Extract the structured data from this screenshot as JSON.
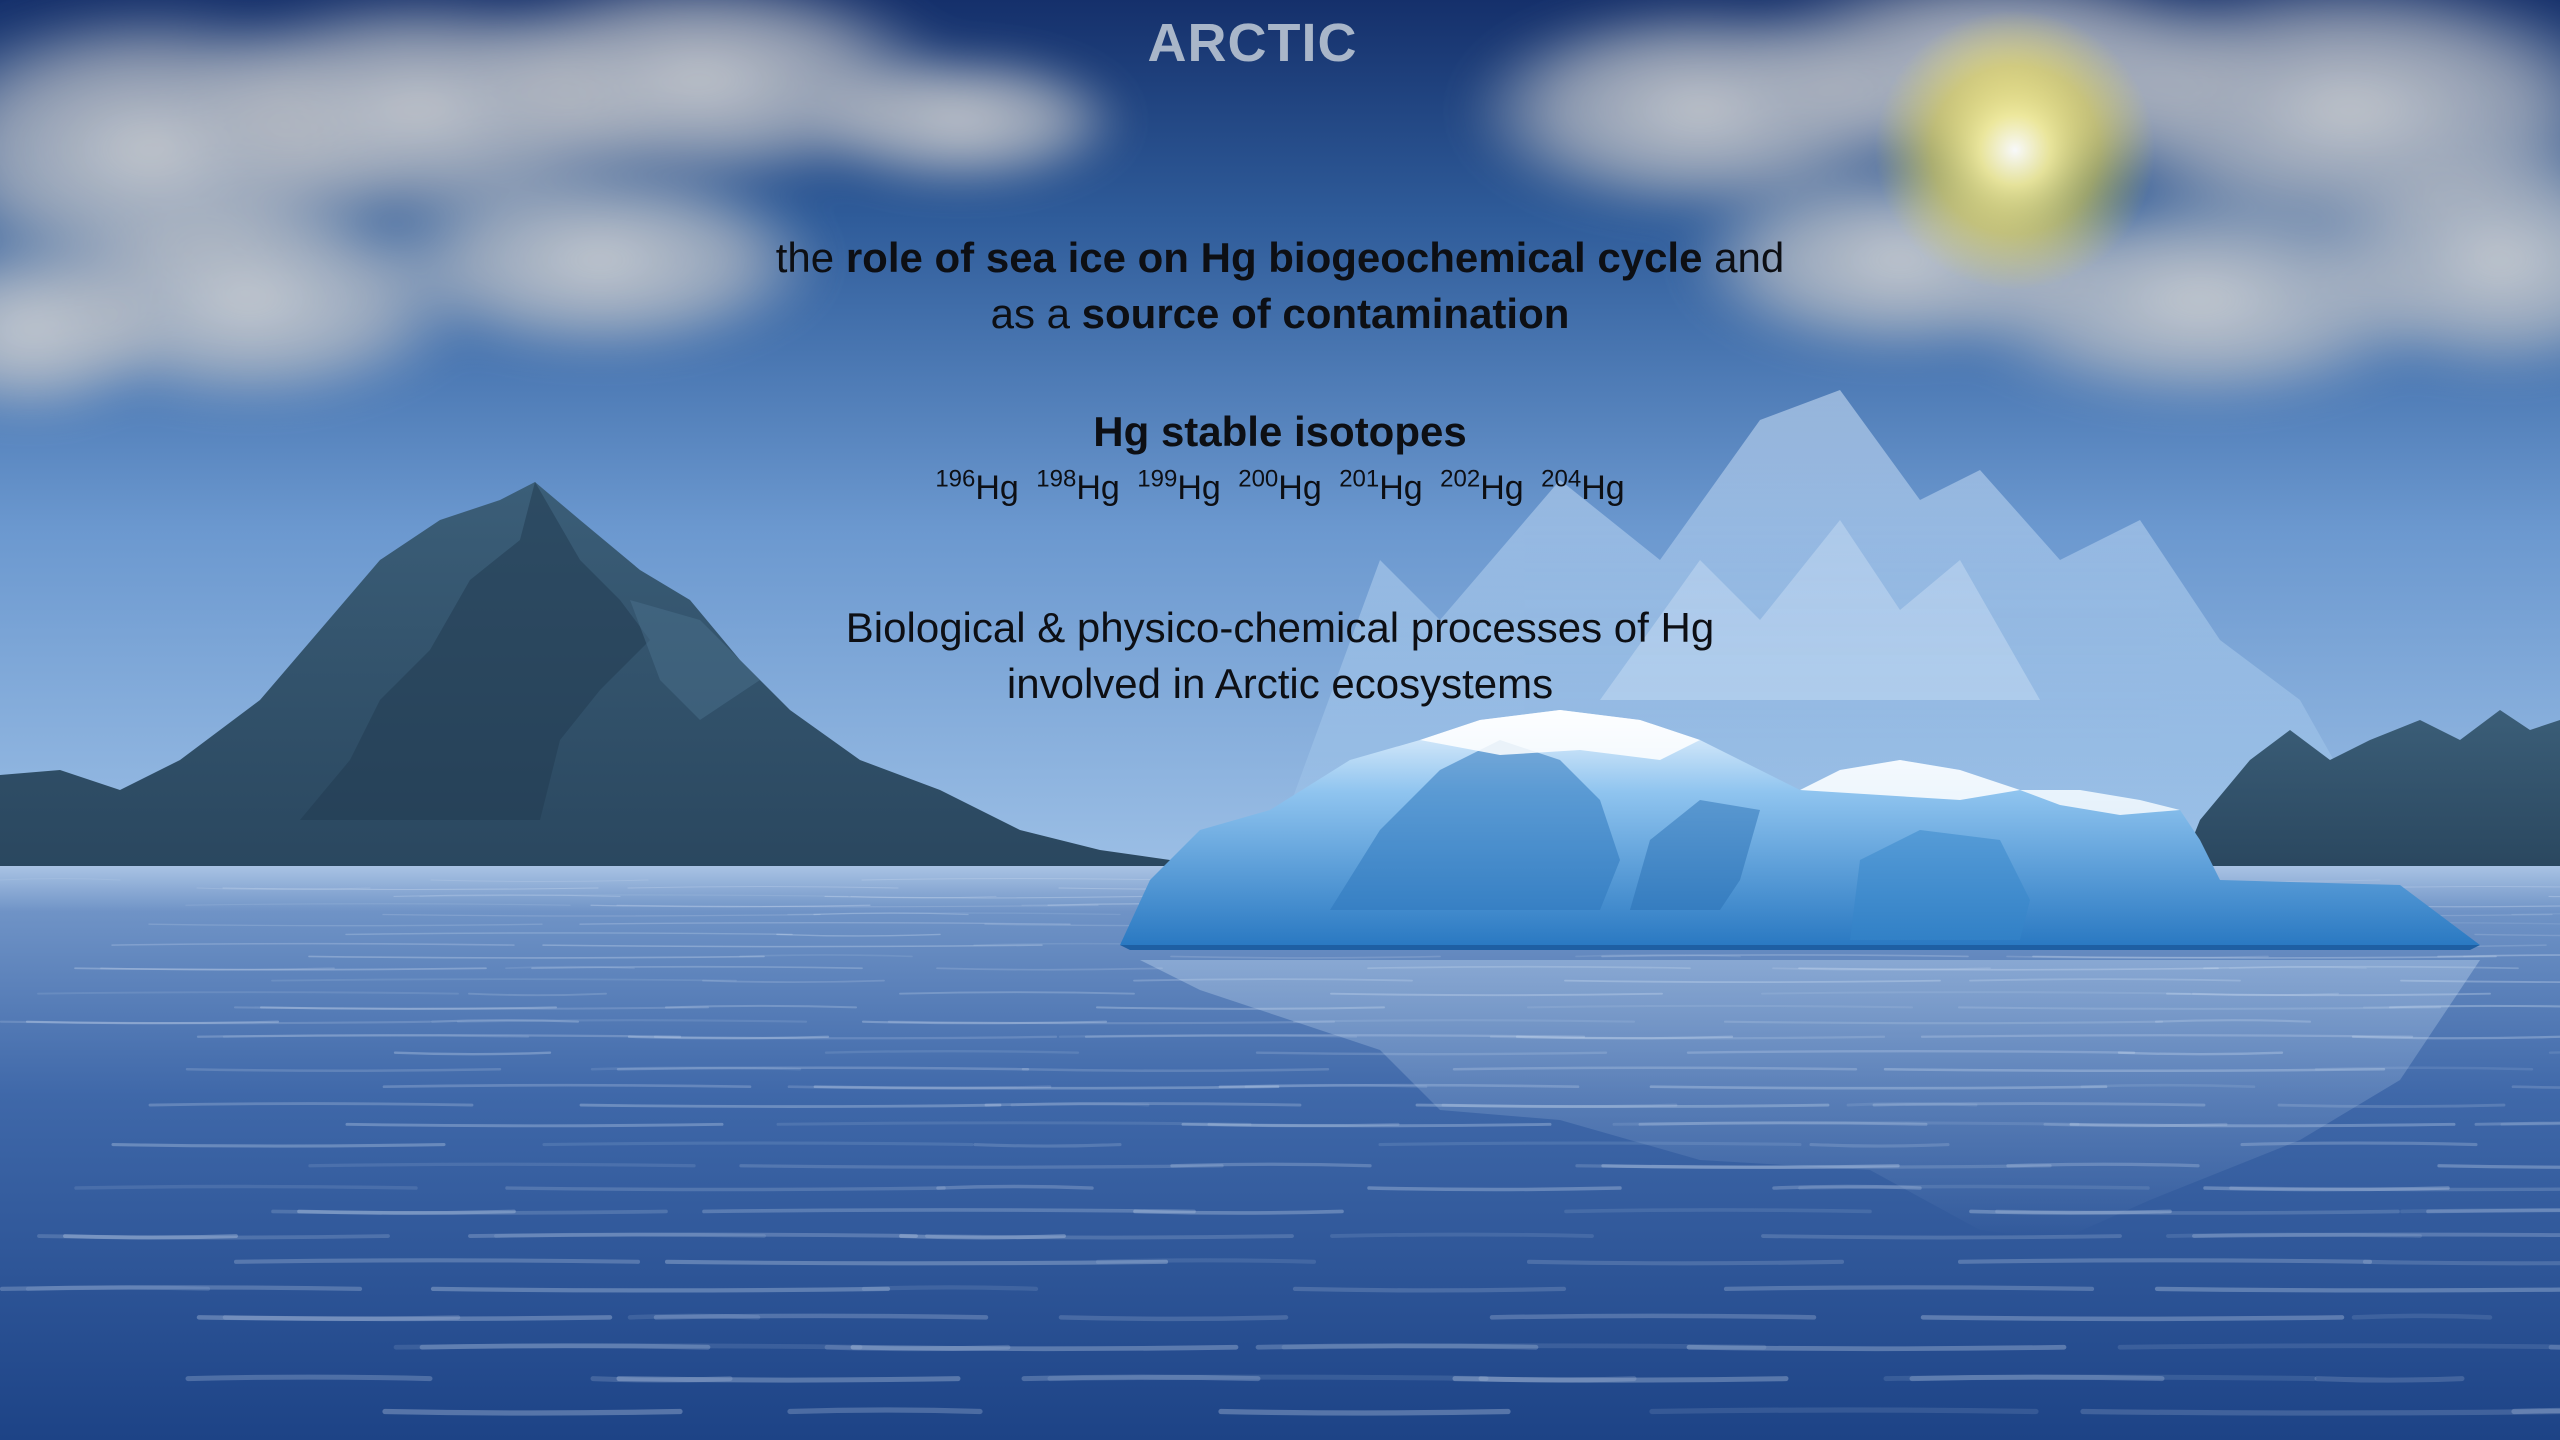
{
  "slide": {
    "title": "ARCTIC",
    "line1": {
      "part1": "the ",
      "part2": "role of sea ice on Hg biogeochemical cycle",
      "part3": " and"
    },
    "line2": {
      "part1": "as a ",
      "part2": "source of contamination"
    },
    "isotopes_heading": "Hg stable isotopes",
    "isotopes": [
      {
        "mass": "196",
        "symbol": "Hg"
      },
      {
        "mass": "198",
        "symbol": "Hg"
      },
      {
        "mass": "199",
        "symbol": "Hg"
      },
      {
        "mass": "200",
        "symbol": "Hg"
      },
      {
        "mass": "201",
        "symbol": "Hg"
      },
      {
        "mass": "202",
        "symbol": "Hg"
      },
      {
        "mass": "204",
        "symbol": "Hg"
      }
    ],
    "processes_line1": "Biological & physico-chemical processes of Hg",
    "processes_line2": "involved in Arctic ecosystems"
  },
  "colors": {
    "sky_top": "#16306a",
    "sky_bottom": "#93b8e0",
    "sea_top": "#c7d9ef",
    "sea_bottom": "#1f4586",
    "mountain": "#2f4f68",
    "iceberg": "#3d8fcf",
    "sun": "#f2e66a",
    "title": "#a9b6c9"
  }
}
